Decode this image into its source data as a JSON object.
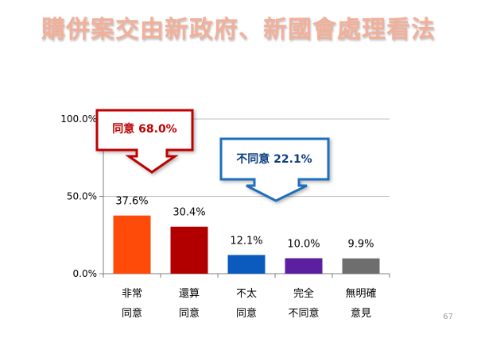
{
  "slide": {
    "title": "購併案交由新政府、新國會處理看法",
    "page_number": "67"
  },
  "callouts": {
    "agree": {
      "text": "同意 68.0%",
      "color": "#c00000"
    },
    "disagree": {
      "text": "不同意 22.1%",
      "color": "#1f6fbf"
    }
  },
  "chart_data": {
    "type": "bar",
    "title": "",
    "xlabel": "",
    "ylabel": "",
    "ylim": [
      0,
      100
    ],
    "yticks": [
      "0.0%",
      "50.0%",
      "100.0%"
    ],
    "grid": true,
    "categories": [
      [
        "非常",
        "同意"
      ],
      [
        "還算",
        "同意"
      ],
      [
        "不太",
        "同意"
      ],
      [
        "完全",
        "不同意"
      ],
      [
        "無明確",
        "意見"
      ]
    ],
    "values": [
      37.6,
      30.4,
      12.1,
      10.0,
      9.9
    ],
    "data_labels": [
      "37.6%",
      "30.4%",
      "12.1%",
      "10.0%",
      "9.9%"
    ],
    "colors": [
      "#ff4b0a",
      "#b20000",
      "#0b5bbf",
      "#5b1fa0",
      "#6e6e6e"
    ]
  }
}
